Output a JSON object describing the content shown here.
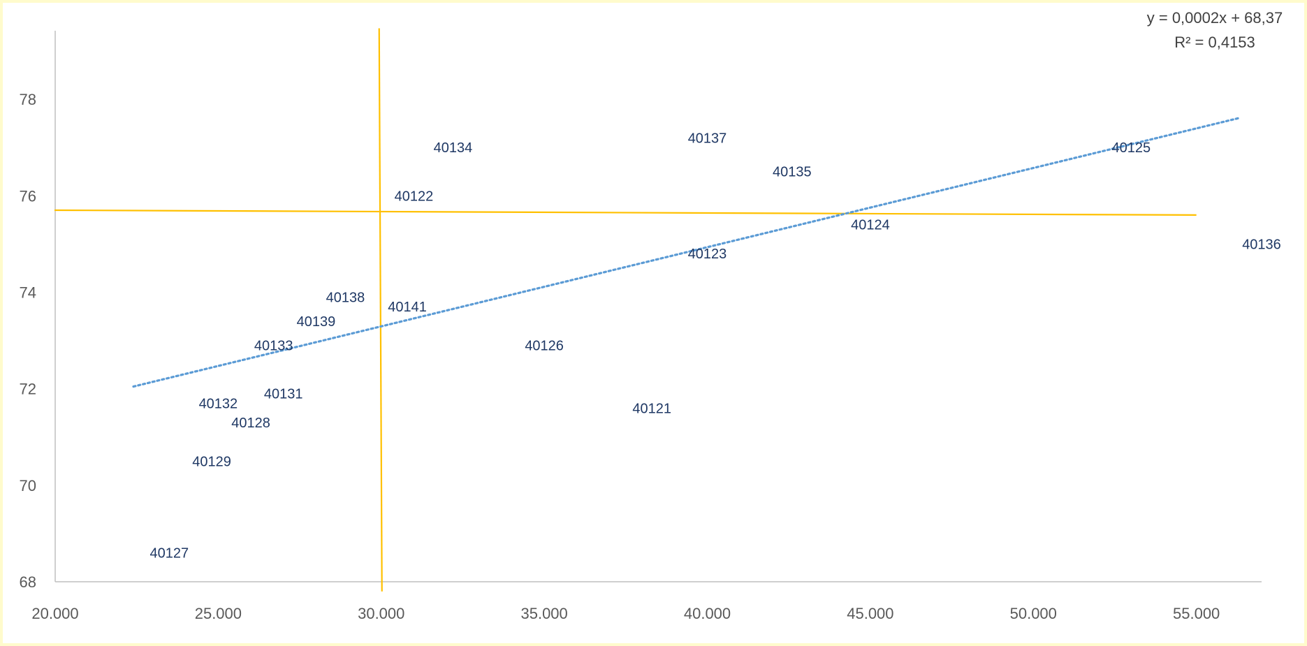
{
  "chart_data": {
    "type": "scatter",
    "title": "",
    "xlabel": "",
    "ylabel": "",
    "xlim": [
      20000,
      57000
    ],
    "ylim": [
      68,
      79
    ],
    "x_ticks": [
      20000,
      25000,
      30000,
      35000,
      40000,
      45000,
      50000,
      55000
    ],
    "x_tick_labels": [
      "20.000",
      "25.000",
      "30.000",
      "35.000",
      "40.000",
      "45.000",
      "50.000",
      "55.000"
    ],
    "y_ticks": [
      68,
      70,
      72,
      74,
      76,
      78
    ],
    "y_tick_labels": [
      "68",
      "70",
      "72",
      "74",
      "76",
      "78"
    ],
    "grid": false,
    "legend": "none",
    "series": [
      {
        "points": [
          {
            "label": "40121",
            "x": 38300,
            "y": 71.6
          },
          {
            "label": "40122",
            "x": 31000,
            "y": 76.0
          },
          {
            "label": "40123",
            "x": 40000,
            "y": 74.8
          },
          {
            "label": "40124",
            "x": 45000,
            "y": 75.4
          },
          {
            "label": "40125",
            "x": 53000,
            "y": 77.0
          },
          {
            "label": "40126",
            "x": 35000,
            "y": 72.9
          },
          {
            "label": "40127",
            "x": 23500,
            "y": 68.6
          },
          {
            "label": "40128",
            "x": 26000,
            "y": 71.3
          },
          {
            "label": "40129",
            "x": 24800,
            "y": 70.5
          },
          {
            "label": "40131",
            "x": 27000,
            "y": 71.9
          },
          {
            "label": "40132",
            "x": 25000,
            "y": 71.7
          },
          {
            "label": "40133",
            "x": 26700,
            "y": 72.9
          },
          {
            "label": "40134",
            "x": 32200,
            "y": 77.0
          },
          {
            "label": "40135",
            "x": 42600,
            "y": 76.5
          },
          {
            "label": "40136",
            "x": 57000,
            "y": 75.0
          },
          {
            "label": "40137",
            "x": 40000,
            "y": 77.2
          },
          {
            "label": "40138",
            "x": 28900,
            "y": 73.9
          },
          {
            "label": "40139",
            "x": 28000,
            "y": 73.4
          },
          {
            "label": "40141",
            "x": 30800,
            "y": 73.7
          }
        ]
      }
    ],
    "trendline": {
      "type": "linear",
      "x_range": [
        22400,
        56300
      ],
      "slope": 0.0001641,
      "intercept": 68.37,
      "color": "#5b9bd5",
      "style": "dotted",
      "equation": "y = 0,0002x + 68,37",
      "r_squared": "R² = 0,4153"
    },
    "reference_lines": {
      "color": "#ffc000",
      "vertical": {
        "x": 30000,
        "y_range": [
          67.8,
          79.5
        ]
      },
      "horizontal": {
        "y_start": 75.7,
        "y_end": 75.6,
        "x_range": [
          20000,
          55000
        ]
      }
    },
    "colors": {
      "axis": "#bfbfbf",
      "tick_text": "#595959",
      "point_label": "#1f3864",
      "background_border": "#fffbcc"
    }
  }
}
